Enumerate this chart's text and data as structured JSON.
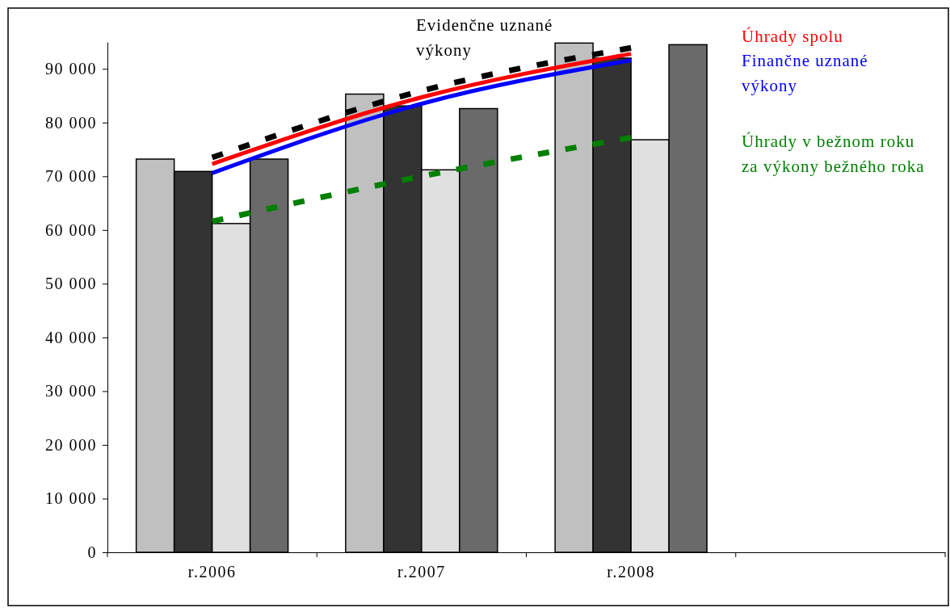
{
  "chart_data": {
    "type": "bar",
    "categories": [
      "r.2006",
      "r.2007",
      "r.2008",
      null
    ],
    "ylim": [
      0,
      95000
    ],
    "yticks": [
      {
        "value": 0,
        "label": "0"
      },
      {
        "value": 10000,
        "label": "10 000"
      },
      {
        "value": 20000,
        "label": "20 000"
      },
      {
        "value": 30000,
        "label": "30 000"
      },
      {
        "value": 40000,
        "label": "40 000"
      },
      {
        "value": 50000,
        "label": "50 000"
      },
      {
        "value": 60000,
        "label": "60 000"
      },
      {
        "value": 70000,
        "label": "70 000"
      },
      {
        "value": 80000,
        "label": "80 000"
      },
      {
        "value": 90000,
        "label": "90 000"
      }
    ],
    "grid": false,
    "legend": false,
    "series": [
      {
        "color": "#c0c0c0",
        "values": [
          73200,
          85300,
          94800,
          null
        ]
      },
      {
        "color": "#333333",
        "values": [
          70900,
          83100,
          92000,
          null
        ]
      },
      {
        "color": "#e0e0e0",
        "values": [
          61200,
          71200,
          76800,
          null
        ]
      },
      {
        "color": "#6a6a6a",
        "values": [
          73200,
          82600,
          94500,
          null
        ]
      },
      {
        "type": "line",
        "name": "Evidenčne uznané výkony",
        "color": "#000000",
        "line_style": "dashed",
        "values": [
          73500,
          85900,
          93900,
          null
        ]
      },
      {
        "type": "line",
        "name": "Úhrady spolu",
        "color": "#ff0000",
        "line_style": "solid",
        "values": [
          72300,
          84700,
          92800,
          null
        ]
      },
      {
        "type": "line",
        "name": "Finančne uznané výkony",
        "color": "#0000ff",
        "line_style": "solid",
        "values": [
          70600,
          83500,
          91600,
          null
        ]
      },
      {
        "type": "line",
        "name": "Úhrady v bežnom roku za výkony bežného roka",
        "color": "#008000",
        "line_style": "dashed",
        "values": [
          61600,
          70000,
          77200,
          null
        ]
      }
    ]
  }
}
